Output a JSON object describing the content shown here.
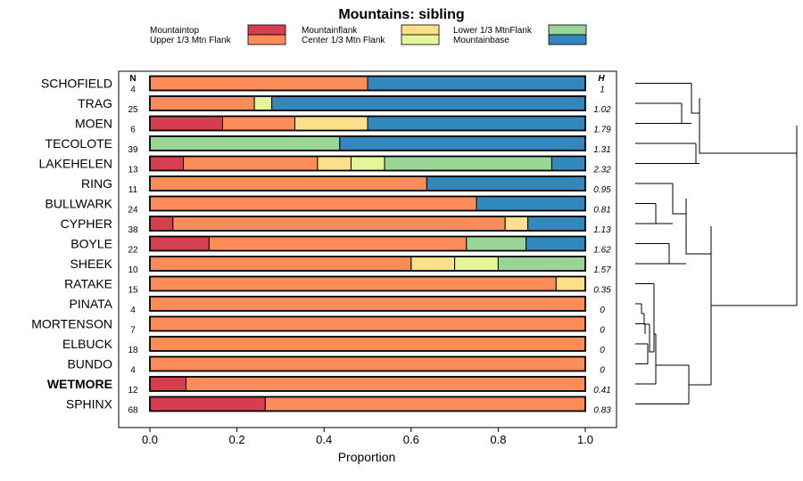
{
  "chart_data": {
    "type": "bar",
    "orientation": "horizontal-stacked",
    "title": "Mountains: sibling",
    "xlabel": "Proportion",
    "ylabel": "",
    "xlim": [
      0,
      1
    ],
    "xticks": [
      "0.0",
      "0.2",
      "0.4",
      "0.6",
      "0.8",
      "1.0"
    ],
    "n_header": "N",
    "h_header": "H",
    "legend": [
      {
        "name": "Mountaintop",
        "color": "#d53e4f"
      },
      {
        "name": "Upper 1/3 Mtn Flank",
        "color": "#fc8d59"
      },
      {
        "name": "Mountainflank",
        "color": "#fee08b"
      },
      {
        "name": "Center 1/3 Mtn Flank",
        "color": "#e6f598"
      },
      {
        "name": "Lower 1/3 MtnFlank",
        "color": "#99d594"
      },
      {
        "name": "Mountainbase",
        "color": "#3288bd"
      }
    ],
    "categories": [
      "SCHOFIELD",
      "TRAG",
      "MOEN",
      "TECOLOTE",
      "LAKEHELEN",
      "RING",
      "BULLWARK",
      "CYPHER",
      "BOYLE",
      "SHEEK",
      "RATAKE",
      "PINATA",
      "MORTENSON",
      "ELBUCK",
      "BUNDO",
      "WETMORE",
      "SPHINX"
    ],
    "highlight": "WETMORE",
    "n": [
      "4",
      "25",
      "6",
      "39",
      "13",
      "11",
      "24",
      "38",
      "22",
      "10",
      "15",
      "4",
      "7",
      "18",
      "4",
      "12",
      "68"
    ],
    "h": [
      "1",
      "1.02",
      "1.79",
      "1.31",
      "2.32",
      "0.95",
      "0.81",
      "1.13",
      "1.62",
      "1.57",
      "0.35",
      "0",
      "0",
      "0",
      "0",
      "0.41",
      "0.83"
    ],
    "series": [
      {
        "name": "Mountaintop",
        "values": [
          0,
          0,
          0.167,
          0,
          0.077,
          0,
          0,
          0.053,
          0.136,
          0,
          0,
          0,
          0,
          0,
          0,
          0.083,
          0.265
        ]
      },
      {
        "name": "Upper 1/3 Mtn Flank",
        "values": [
          0.5,
          0.24,
          0.166,
          0,
          0.308,
          0.636,
          0.75,
          0.763,
          0.591,
          0.6,
          0.933,
          1,
          1,
          1,
          1,
          0.917,
          0.735
        ]
      },
      {
        "name": "Mountainflank",
        "values": [
          0,
          0,
          0.167,
          0,
          0.077,
          0,
          0,
          0.052,
          0,
          0.1,
          0.067,
          0,
          0,
          0,
          0,
          0,
          0
        ]
      },
      {
        "name": "Center 1/3 Mtn Flank",
        "values": [
          0,
          0.04,
          0,
          0,
          0.077,
          0,
          0,
          0,
          0,
          0.1,
          0,
          0,
          0,
          0,
          0,
          0,
          0
        ]
      },
      {
        "name": "Lower 1/3 MtnFlank",
        "values": [
          0,
          0,
          0,
          0.436,
          0.384,
          0,
          0,
          0,
          0.137,
          0.2,
          0,
          0,
          0,
          0,
          0,
          0,
          0
        ]
      },
      {
        "name": "Mountainbase",
        "values": [
          0.5,
          0.72,
          0.5,
          0.564,
          0.077,
          0.364,
          0.25,
          0.132,
          0.136,
          0,
          0,
          0,
          0,
          0,
          0,
          0,
          0
        ]
      }
    ]
  }
}
